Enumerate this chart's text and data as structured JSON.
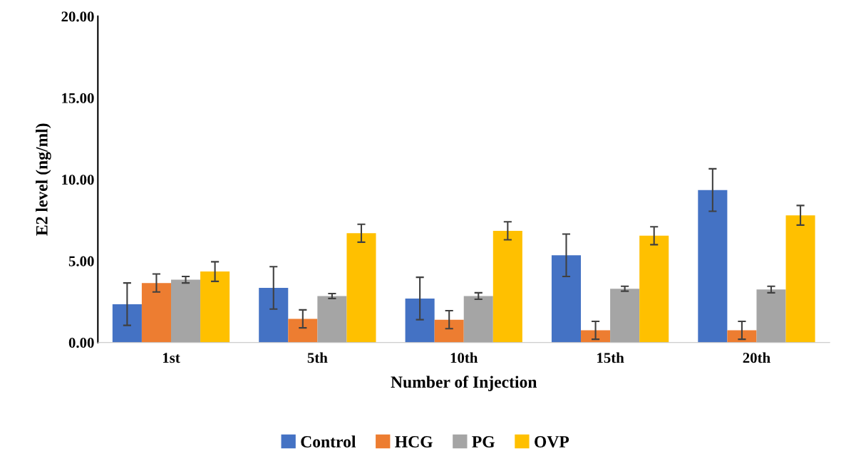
{
  "chart_data": {
    "type": "bar",
    "xlabel": "Number of Injection",
    "ylabel": "E2 level (ng/ml)",
    "categories": [
      "1st",
      "5th",
      "10th",
      "15th",
      "20th"
    ],
    "series": [
      {
        "name": "Control",
        "color": "#4472c4",
        "values": [
          2.35,
          3.35,
          2.7,
          5.35,
          9.35
        ],
        "errors": [
          1.3,
          1.3,
          1.3,
          1.3,
          1.3
        ]
      },
      {
        "name": "HCG",
        "color": "#ed7d31",
        "values": [
          3.65,
          1.45,
          1.4,
          0.75,
          0.75
        ],
        "errors": [
          0.55,
          0.55,
          0.55,
          0.55,
          0.55
        ]
      },
      {
        "name": "PG",
        "color": "#a5a5a5",
        "values": [
          3.85,
          2.85,
          2.85,
          3.3,
          3.25
        ],
        "errors": [
          0.2,
          0.15,
          0.2,
          0.15,
          0.2
        ]
      },
      {
        "name": "OVP",
        "color": "#ffc000",
        "values": [
          4.35,
          6.7,
          6.85,
          6.55,
          7.8
        ],
        "errors": [
          0.6,
          0.55,
          0.55,
          0.55,
          0.6
        ]
      }
    ],
    "ylim": [
      0,
      20
    ],
    "yticks": [
      {
        "value": 0,
        "label": "0.00"
      },
      {
        "value": 5,
        "label": "5.00"
      },
      {
        "value": 10,
        "label": "10.00"
      },
      {
        "value": 15,
        "label": "15.00"
      },
      {
        "value": 20,
        "label": "20.00"
      }
    ],
    "grid": false,
    "legend": "bottom"
  }
}
